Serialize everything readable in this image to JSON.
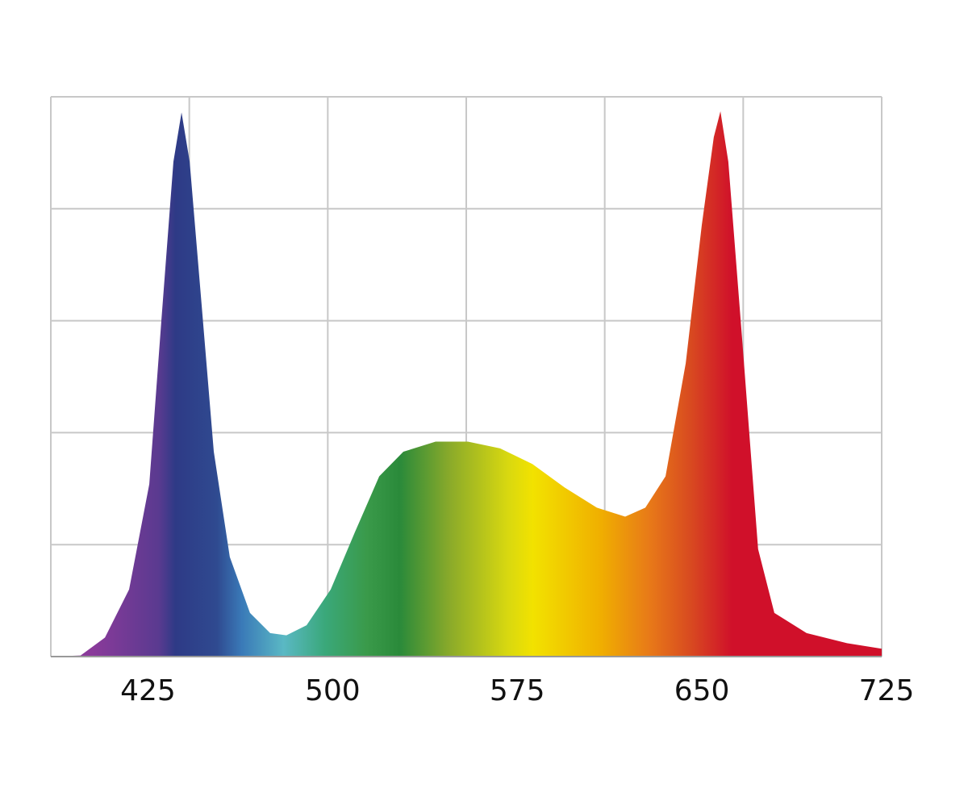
{
  "chart_data": {
    "type": "area",
    "x": [
      387.5,
      399.6,
      409.5,
      419.3,
      427.5,
      432.4,
      437.3,
      440.6,
      443.9,
      448.8,
      453.7,
      460.2,
      468.4,
      476.6,
      483.2,
      491.4,
      501.2,
      511,
      520.9,
      530.7,
      543.8,
      556.9,
      570,
      583.1,
      596.2,
      609.3,
      620.8,
      629,
      637.2,
      645.4,
      651.9,
      656.8,
      659.5,
      662.7,
      668.3,
      674.8,
      681.4,
      694.5,
      710.9,
      725
    ],
    "values": [
      0,
      0.01,
      0.17,
      0.6,
      1.54,
      3.0,
      4.42,
      4.86,
      4.42,
      3.13,
      1.83,
      0.89,
      0.39,
      0.21,
      0.19,
      0.28,
      0.6,
      1.11,
      1.61,
      1.83,
      1.92,
      1.92,
      1.86,
      1.72,
      1.51,
      1.33,
      1.25,
      1.33,
      1.61,
      2.62,
      3.85,
      4.64,
      4.87,
      4.42,
      2.84,
      0.96,
      0.39,
      0.21,
      0.12,
      0.07
    ],
    "xlim": [
      387.5,
      725
    ],
    "xticks": [
      425,
      500,
      575,
      650,
      725
    ],
    "xgrid": [
      387.5,
      443.75,
      500,
      556.25,
      612.5,
      668.75,
      725
    ],
    "ylim": [
      0,
      5
    ],
    "ygrid": [
      0,
      1,
      2,
      3,
      4,
      5
    ],
    "grid": true
  }
}
